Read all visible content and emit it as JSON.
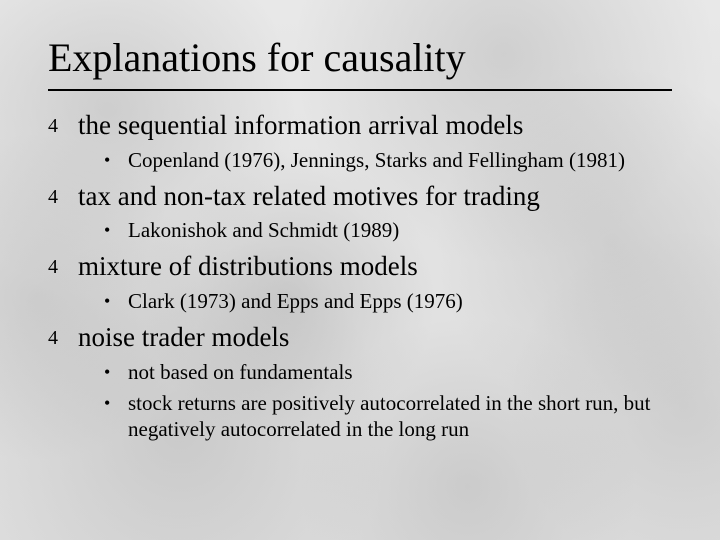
{
  "title": "Explanations for causality",
  "bullets": {
    "lvl1_glyph": "4",
    "lvl2_glyph": "•"
  },
  "items": [
    {
      "text": "the sequential information arrival models",
      "sub": [
        "Copenland (1976),  Jennings, Starks and Fellingham (1981)"
      ]
    },
    {
      "text": "tax and non-tax related motives for trading",
      "sub": [
        "Lakonishok and Schmidt (1989)"
      ]
    },
    {
      "text": "mixture of distributions models",
      "sub": [
        "Clark (1973) and Epps and Epps (1976)"
      ]
    },
    {
      "text": "noise trader models",
      "sub": [
        "not based on fundamentals",
        "stock returns are positively autocorrelated in the short run, but negatively autocorrelated in the long run"
      ]
    }
  ]
}
